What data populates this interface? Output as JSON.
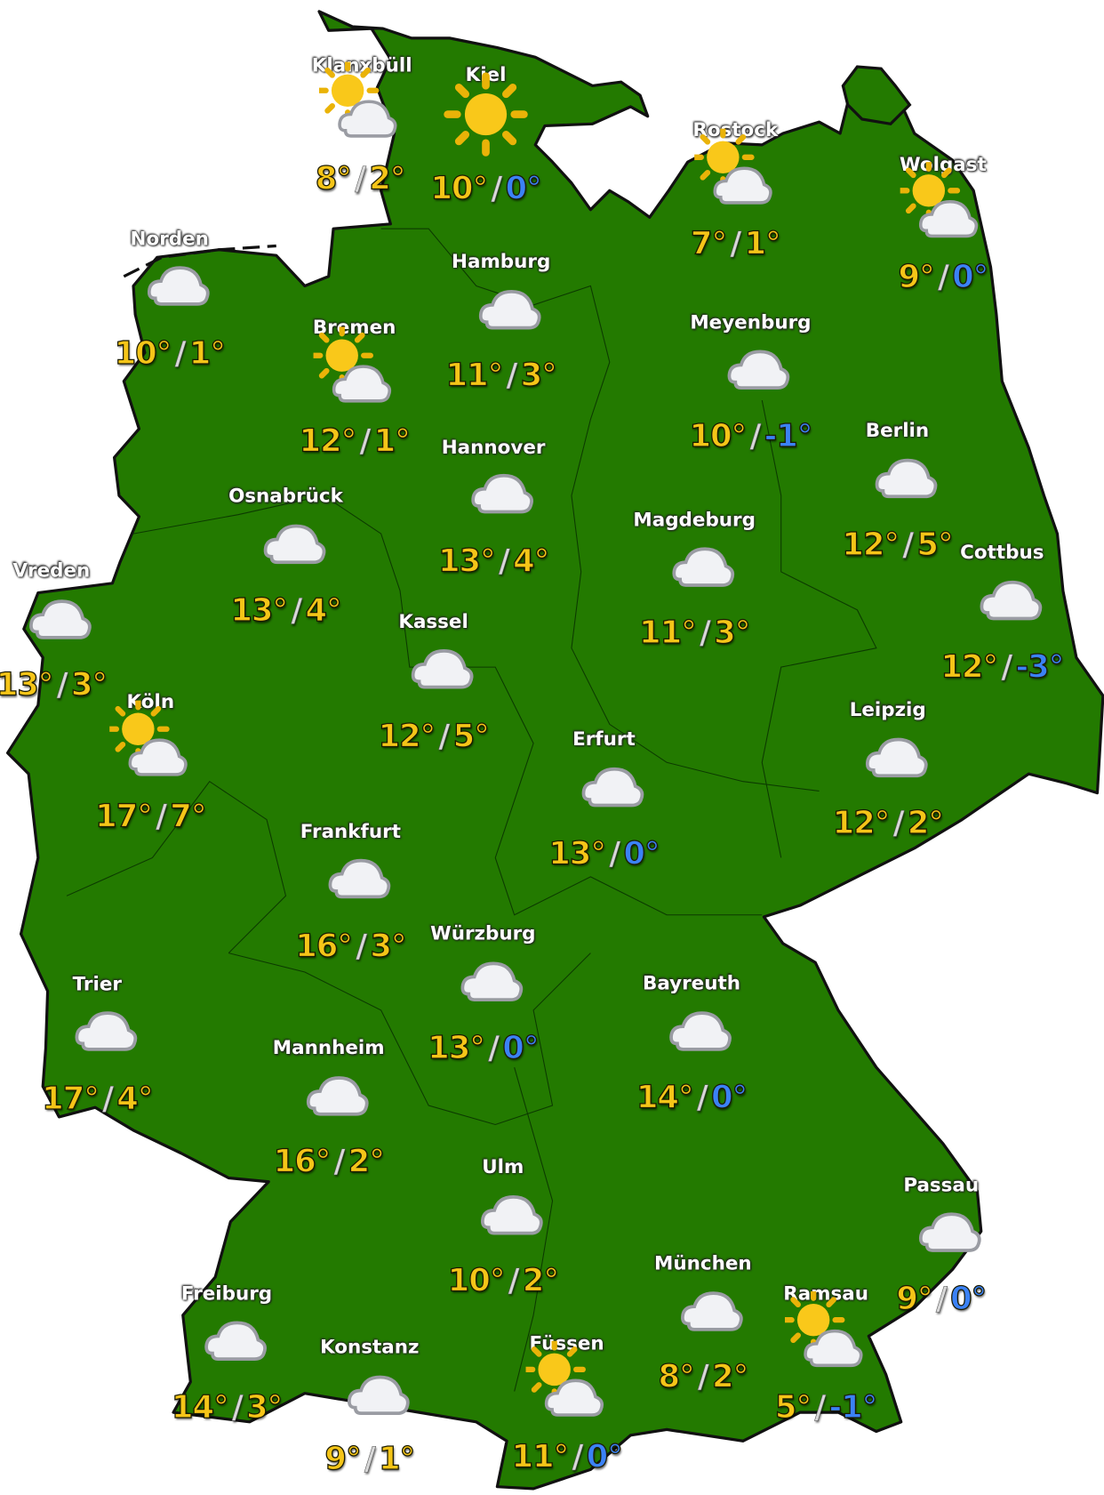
{
  "colors": {
    "land": "#237a00",
    "border": "#111111",
    "max": "#f5c518",
    "min_positive": "#f5c518",
    "min_nonpositive": "#3b82f6",
    "label": "#ffffff"
  },
  "cities": [
    {
      "name": "Klanxbüll",
      "icon": "partly-cloudy-icon",
      "max": "8°",
      "min": "2°",
      "p": [
        380,
        68,
        378,
        110,
        378,
        187
      ]
    },
    {
      "name": "Kiel",
      "icon": "sun-icon",
      "max": "10°",
      "min": "0°",
      "p": [
        510,
        78,
        510,
        122,
        510,
        197
      ]
    },
    {
      "name": "Rostock",
      "icon": "partly-cloudy-icon",
      "max": "7°",
      "min": "1°",
      "p": [
        772,
        136,
        772,
        180,
        772,
        255
      ]
    },
    {
      "name": "Wolgast",
      "icon": "partly-cloudy-icon",
      "max": "9°",
      "min": "0°",
      "p": [
        990,
        172,
        988,
        215,
        990,
        290
      ]
    },
    {
      "name": "Norden",
      "icon": "cloud-icon",
      "max": "10°",
      "min": "1°",
      "p": [
        178,
        250,
        188,
        300,
        178,
        370
      ]
    },
    {
      "name": "Hamburg",
      "icon": "cloud-icon",
      "max": "11°",
      "min": "3°",
      "p": [
        526,
        274,
        536,
        325,
        526,
        393
      ]
    },
    {
      "name": "Bremen",
      "icon": "partly-cloudy-icon",
      "max": "12°",
      "min": "1°",
      "p": [
        372,
        343,
        372,
        388,
        372,
        462
      ]
    },
    {
      "name": "Meyenburg",
      "icon": "cloud-icon",
      "max": "10°",
      "min": "-1°",
      "p": [
        788,
        338,
        797,
        388,
        788,
        457
      ]
    },
    {
      "name": "Hannover",
      "icon": "cloud-icon",
      "max": "13°",
      "min": "4°",
      "p": [
        518,
        469,
        528,
        518,
        518,
        588
      ]
    },
    {
      "name": "Berlin",
      "icon": "cloud-icon",
      "max": "12°",
      "min": "5°",
      "p": [
        942,
        451,
        952,
        502,
        942,
        571
      ]
    },
    {
      "name": "Osnabrück",
      "icon": "cloud-icon",
      "max": "13°",
      "min": "4°",
      "p": [
        300,
        520,
        310,
        571,
        300,
        640
      ]
    },
    {
      "name": "Magdeburg",
      "icon": "cloud-icon",
      "max": "11°",
      "min": "3°",
      "p": [
        729,
        545,
        739,
        595,
        729,
        663
      ]
    },
    {
      "name": "Cottbus",
      "icon": "cloud-icon",
      "max": "12°",
      "min": "-3°",
      "p": [
        1052,
        579,
        1062,
        630,
        1052,
        699
      ]
    },
    {
      "name": "Vreden",
      "icon": "cloud-icon",
      "max": "13°",
      "min": "3°",
      "p": [
        54,
        598,
        64,
        650,
        54,
        718
      ]
    },
    {
      "name": "Kassel",
      "icon": "cloud-icon",
      "max": "12°",
      "min": "5°",
      "p": [
        455,
        652,
        465,
        702,
        455,
        772
      ]
    },
    {
      "name": "Leipzig",
      "icon": "cloud-icon",
      "max": "12°",
      "min": "2°",
      "p": [
        932,
        744,
        942,
        795,
        932,
        863
      ]
    },
    {
      "name": "Köln",
      "icon": "partly-cloudy-icon",
      "max": "17°",
      "min": "7°",
      "p": [
        158,
        736,
        158,
        780,
        158,
        856
      ]
    },
    {
      "name": "Erfurt",
      "icon": "cloud-icon",
      "max": "13°",
      "min": "0°",
      "p": [
        634,
        775,
        644,
        826,
        634,
        895
      ]
    },
    {
      "name": "Frankfurt",
      "icon": "cloud-icon",
      "max": "16°",
      "min": "3°",
      "p": [
        368,
        872,
        378,
        922,
        368,
        992
      ]
    },
    {
      "name": "Würzburg",
      "icon": "cloud-icon",
      "max": "13°",
      "min": "0°",
      "p": [
        507,
        979,
        517,
        1030,
        507,
        1099
      ]
    },
    {
      "name": "Trier",
      "icon": "cloud-icon",
      "max": "17°",
      "min": "4°",
      "p": [
        102,
        1032,
        112,
        1082,
        102,
        1152
      ]
    },
    {
      "name": "Bayreuth",
      "icon": "cloud-icon",
      "max": "14°",
      "min": "0°",
      "p": [
        726,
        1031,
        736,
        1082,
        726,
        1151
      ]
    },
    {
      "name": "Mannheim",
      "icon": "cloud-icon",
      "max": "16°",
      "min": "2°",
      "p": [
        345,
        1099,
        355,
        1150,
        345,
        1218
      ]
    },
    {
      "name": "Ulm",
      "icon": "cloud-icon",
      "max": "10°",
      "min": "2°",
      "p": [
        528,
        1224,
        538,
        1275,
        528,
        1343
      ]
    },
    {
      "name": "Passau",
      "icon": "cloud-icon",
      "max": "9°",
      "min": "0°",
      "p": [
        988,
        1243,
        998,
        1293,
        988,
        1362
      ]
    },
    {
      "name": "München",
      "icon": "cloud-icon",
      "max": "8°",
      "min": "2°",
      "p": [
        738,
        1325,
        748,
        1376,
        738,
        1444
      ]
    },
    {
      "name": "Ramsau",
      "icon": "partly-cloudy-icon",
      "max": "5°",
      "min": "-1°",
      "p": [
        867,
        1357,
        867,
        1400,
        867,
        1476
      ]
    },
    {
      "name": "Freiburg",
      "icon": "cloud-icon",
      "max": "14°",
      "min": "3°",
      "p": [
        238,
        1357,
        248,
        1407,
        238,
        1476
      ]
    },
    {
      "name": "Konstanz",
      "icon": "cloud-icon",
      "max": "9°",
      "min": "1°",
      "p": [
        388,
        1413,
        398,
        1464,
        388,
        1530
      ]
    },
    {
      "name": "Füssen",
      "icon": "partly-cloudy-icon",
      "max": "11°",
      "min": "0°",
      "p": [
        595,
        1409,
        595,
        1452,
        595,
        1528
      ]
    }
  ]
}
